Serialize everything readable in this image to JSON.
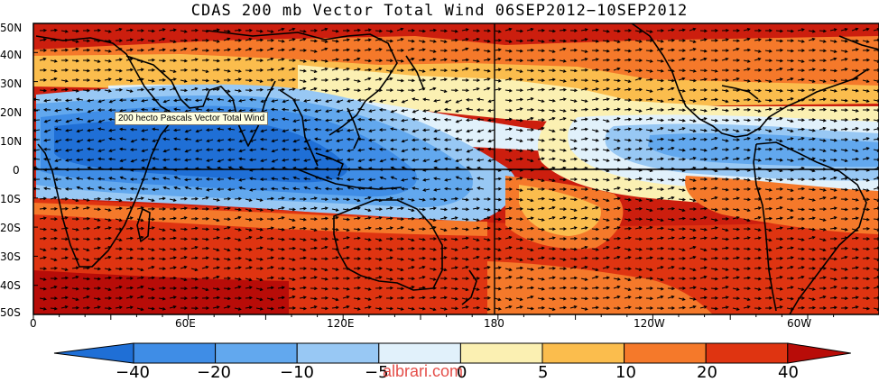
{
  "title": "CDAS 200 mb Vector Total Wind 06SEP2012−10SEP2012",
  "tooltip": "200 hecto Pascals Vector Total Wind",
  "watermark": "albrari.com",
  "lat_labels": [
    "50N",
    "40N",
    "30N",
    "20N",
    "10N",
    "0",
    "10S",
    "20S",
    "30S",
    "40S",
    "50S"
  ],
  "lon_labels": [
    "0",
    "60E",
    "120E",
    "180",
    "120W",
    "60W"
  ],
  "colorbar": {
    "labels": [
      "−40",
      "−20",
      "−10",
      "−5",
      "0",
      "5",
      "10",
      "20",
      "40"
    ],
    "colors": [
      "#1f6fd6",
      "#3f8de6",
      "#62a8ee",
      "#98c8f4",
      "#e1f1fb",
      "#fbf0b2",
      "#fbbd4d",
      "#f5792a",
      "#df3411",
      "#b80c08"
    ]
  },
  "legend": {
    "easterly_strong": "#1f6fd6",
    "westerly_strong": "#cc1e0e"
  }
}
